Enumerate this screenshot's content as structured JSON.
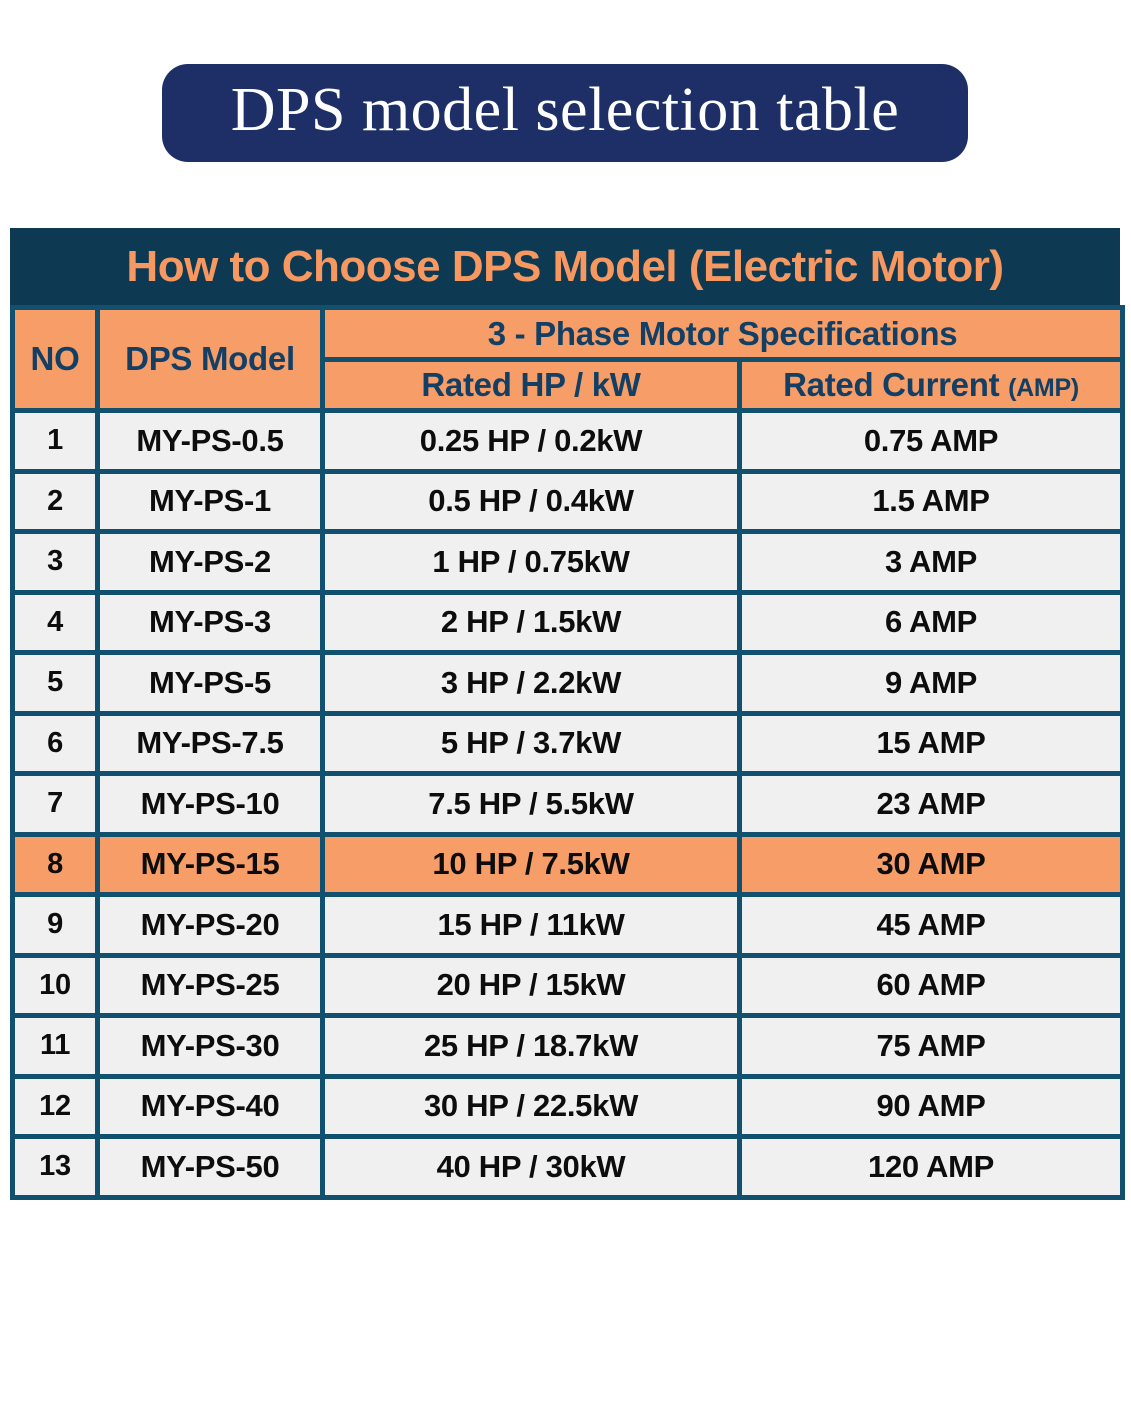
{
  "page_title": "DPS model selection table",
  "table": {
    "title": "How to Choose DPS Model (Electric Motor)",
    "columns": {
      "no": "NO",
      "model": "DPS Model",
      "spec_group": "3 - Phase Motor Specifications",
      "rated_hp": "Rated HP / kW",
      "rated_current": "Rated Current",
      "rated_current_unit": "(AMP)"
    },
    "rows": [
      {
        "no": "1",
        "model": "MY-PS-0.5",
        "hp": "0.25 HP / 0.2kW",
        "amp": "0.75 AMP",
        "highlight": false
      },
      {
        "no": "2",
        "model": "MY-PS-1",
        "hp": "0.5 HP / 0.4kW",
        "amp": "1.5 AMP",
        "highlight": false
      },
      {
        "no": "3",
        "model": "MY-PS-2",
        "hp": "1 HP / 0.75kW",
        "amp": "3 AMP",
        "highlight": false
      },
      {
        "no": "4",
        "model": "MY-PS-3",
        "hp": "2 HP / 1.5kW",
        "amp": "6 AMP",
        "highlight": false
      },
      {
        "no": "5",
        "model": "MY-PS-5",
        "hp": "3 HP / 2.2kW",
        "amp": "9 AMP",
        "highlight": false
      },
      {
        "no": "6",
        "model": "MY-PS-7.5",
        "hp": "5 HP / 3.7kW",
        "amp": "15 AMP",
        "highlight": false
      },
      {
        "no": "7",
        "model": "MY-PS-10",
        "hp": "7.5 HP / 5.5kW",
        "amp": "23 AMP",
        "highlight": false
      },
      {
        "no": "8",
        "model": "MY-PS-15",
        "hp": "10 HP / 7.5kW",
        "amp": "30 AMP",
        "highlight": true
      },
      {
        "no": "9",
        "model": "MY-PS-20",
        "hp": "15 HP / 11kW",
        "amp": "45 AMP",
        "highlight": false
      },
      {
        "no": "10",
        "model": "MY-PS-25",
        "hp": "20 HP / 15kW",
        "amp": "60 AMP",
        "highlight": false
      },
      {
        "no": "11",
        "model": "MY-PS-30",
        "hp": "25 HP / 18.7kW",
        "amp": "75 AMP",
        "highlight": false
      },
      {
        "no": "12",
        "model": "MY-PS-40",
        "hp": "30 HP / 22.5kW",
        "amp": "90 AMP",
        "highlight": false
      },
      {
        "no": "13",
        "model": "MY-PS-50",
        "hp": "40 HP / 30kW",
        "amp": "120 AMP",
        "highlight": false
      }
    ]
  },
  "colors": {
    "page_bg": "#ffffff",
    "badge_bg": "#1d2f66",
    "badge_text": "#ffffff",
    "title_bar_bg": "#0d3a52",
    "title_bar_text": "#f89861",
    "header_cell_bg": "#f79d68",
    "header_cell_text": "#123f63",
    "grid_border": "#11506f",
    "row_bg": "#f0f0f0",
    "row_text": "#0d0d0d",
    "highlight_row_bg": "#f79d68"
  }
}
